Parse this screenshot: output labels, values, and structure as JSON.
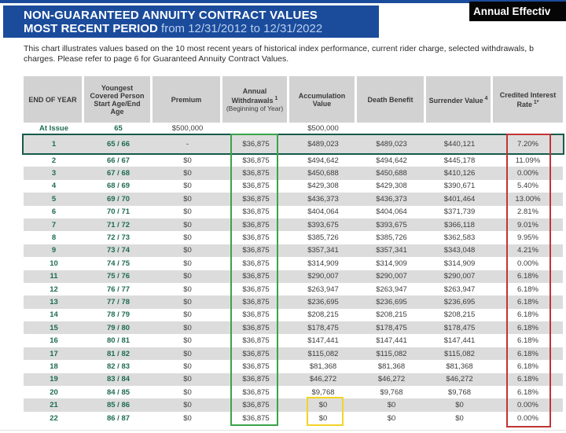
{
  "banner": {
    "line1": "NON-GUARANTEED ANNUITY CONTRACT VALUES",
    "line2_bold": "MOST RECENT PERIOD",
    "line2_rest": "from 12/31/2012 to 12/31/2022"
  },
  "corner_label": "Annual Effectiv",
  "note": {
    "line1": "This chart illustrates values based on the 10 most recent years of historical index performance, current rider charge, selected withdrawals, b",
    "line2": "charges. Please refer to page 6 for Guaranteed Annuity Contract Values."
  },
  "colors": {
    "banner_blue": "#1b4c9c",
    "header_gray": "#d2d2d2",
    "stripe_gray": "#dcdcdc",
    "green_text": "#1e6b52",
    "row1_outline": "#175a4b",
    "withdrawals_box_green": "#3aa44a",
    "zero_box_yellow": "#f3d429",
    "rate_box_red": "#c23335",
    "corner_black": "#050505"
  },
  "table": {
    "headers": [
      {
        "label": "END OF YEAR",
        "sup": "",
        "note": ""
      },
      {
        "label": "Youngest Covered Person Start Age/End Age",
        "sup": "",
        "note": ""
      },
      {
        "label": "Premium",
        "sup": "",
        "note": ""
      },
      {
        "label": "Annual Withdrawals",
        "sup": "1",
        "note": "(Beginning of Year)"
      },
      {
        "label": "Accumulation Value",
        "sup": "",
        "note": ""
      },
      {
        "label": "Death Benefit",
        "sup": "",
        "note": ""
      },
      {
        "label": "Surrender Value",
        "sup": "4",
        "note": ""
      },
      {
        "label": "Credited Interest Rate",
        "sup": "1*",
        "note": ""
      }
    ],
    "at_issue_row": [
      "At Issue",
      "65",
      "$500,000",
      "",
      "$500,000",
      "",
      "",
      ""
    ],
    "rows": [
      [
        "1",
        "65 / 66",
        "-",
        "$36,875",
        "$489,023",
        "$489,023",
        "$440,121",
        "7.20%"
      ],
      [
        "2",
        "66 / 67",
        "$0",
        "$36,875",
        "$494,642",
        "$494,642",
        "$445,178",
        "11.09%"
      ],
      [
        "3",
        "67 / 68",
        "$0",
        "$36,875",
        "$450,688",
        "$450,688",
        "$410,126",
        "0.00%"
      ],
      [
        "4",
        "68 / 69",
        "$0",
        "$36,875",
        "$429,308",
        "$429,308",
        "$390,671",
        "5.40%"
      ],
      [
        "5",
        "69 / 70",
        "$0",
        "$36,875",
        "$436,373",
        "$436,373",
        "$401,464",
        "13.00%"
      ],
      [
        "6",
        "70 / 71",
        "$0",
        "$36,875",
        "$404,064",
        "$404,064",
        "$371,739",
        "2.81%"
      ],
      [
        "7",
        "71 / 72",
        "$0",
        "$36,875",
        "$393,675",
        "$393,675",
        "$366,118",
        "9.01%"
      ],
      [
        "8",
        "72 / 73",
        "$0",
        "$36,875",
        "$385,726",
        "$385,726",
        "$362,583",
        "9.95%"
      ],
      [
        "9",
        "73 / 74",
        "$0",
        "$36,875",
        "$357,341",
        "$357,341",
        "$343,048",
        "4.21%"
      ],
      [
        "10",
        "74 / 75",
        "$0",
        "$36,875",
        "$314,909",
        "$314,909",
        "$314,909",
        "0.00%"
      ],
      [
        "11",
        "75 / 76",
        "$0",
        "$36,875",
        "$290,007",
        "$290,007",
        "$290,007",
        "6.18%"
      ],
      [
        "12",
        "76 / 77",
        "$0",
        "$36,875",
        "$263,947",
        "$263,947",
        "$263,947",
        "6.18%"
      ],
      [
        "13",
        "77 / 78",
        "$0",
        "$36,875",
        "$236,695",
        "$236,695",
        "$236,695",
        "6.18%"
      ],
      [
        "14",
        "78 / 79",
        "$0",
        "$36,875",
        "$208,215",
        "$208,215",
        "$208,215",
        "6.18%"
      ],
      [
        "15",
        "79 / 80",
        "$0",
        "$36,875",
        "$178,475",
        "$178,475",
        "$178,475",
        "6.18%"
      ],
      [
        "16",
        "80 / 81",
        "$0",
        "$36,875",
        "$147,441",
        "$147,441",
        "$147,441",
        "6.18%"
      ],
      [
        "17",
        "81 / 82",
        "$0",
        "$36,875",
        "$115,082",
        "$115,082",
        "$115,082",
        "6.18%"
      ],
      [
        "18",
        "82 / 83",
        "$0",
        "$36,875",
        "$81,368",
        "$81,368",
        "$81,368",
        "6.18%"
      ],
      [
        "19",
        "83 / 84",
        "$0",
        "$36,875",
        "$46,272",
        "$46,272",
        "$46,272",
        "6.18%"
      ],
      [
        "20",
        "84 / 85",
        "$0",
        "$36,875",
        "$9,768",
        "$9,768",
        "$9,768",
        "6.18%"
      ],
      [
        "21",
        "85 / 86",
        "$0",
        "$36,875",
        "$0",
        "$0",
        "$0",
        "0.00%"
      ],
      [
        "22",
        "86 / 87",
        "$0",
        "$36,875",
        "$0",
        "$0",
        "$0",
        "0.00%"
      ]
    ]
  }
}
